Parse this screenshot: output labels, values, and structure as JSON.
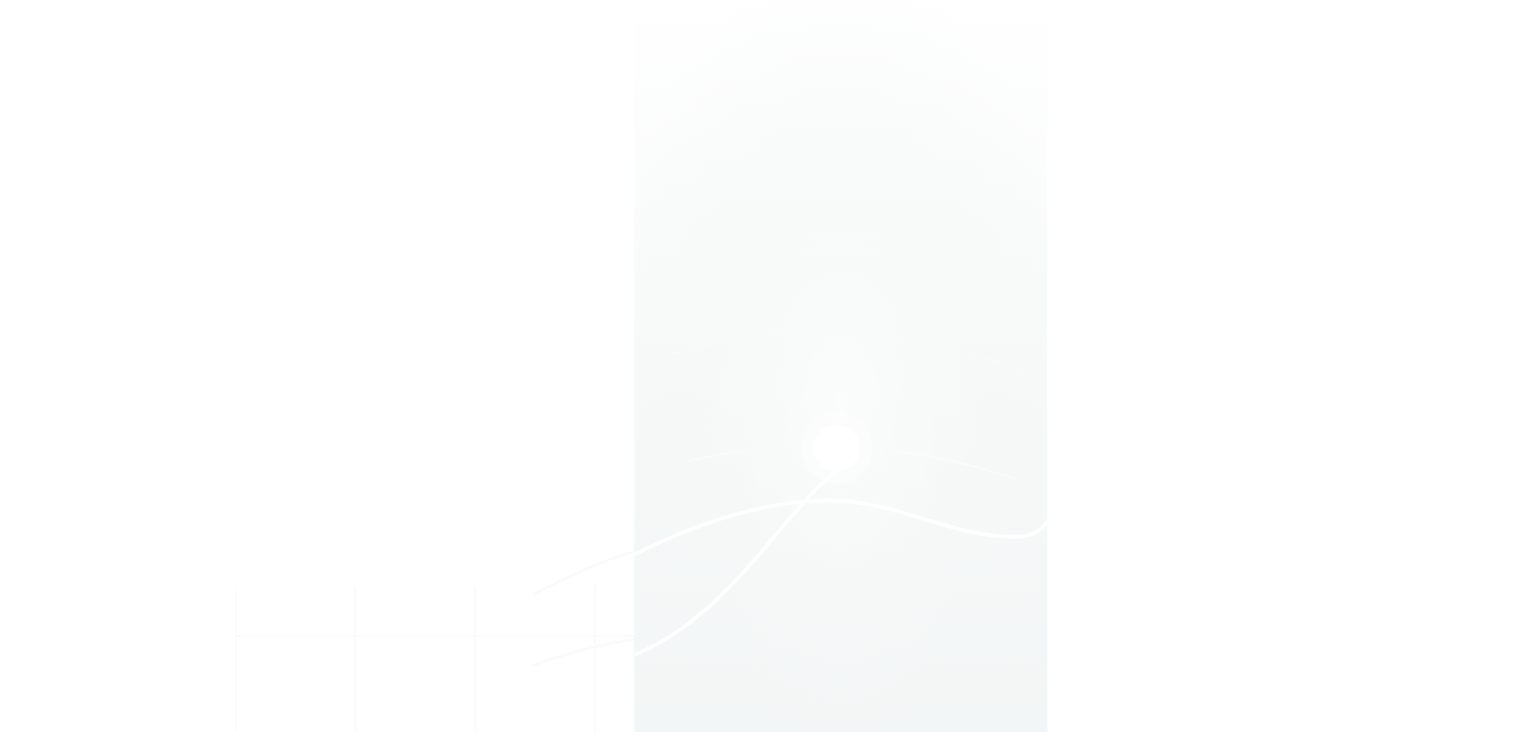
{
  "colors": {
    "page_background": "#ffffff",
    "panel_top": "#ffffff",
    "panel_bottom": "#f3f6f6",
    "curve_stroke": "#ffffff",
    "grid_line": "#f7f7f7"
  },
  "graphics": {
    "hero_panel": "abstract-wave-background",
    "grid": "faint-grid-background"
  }
}
